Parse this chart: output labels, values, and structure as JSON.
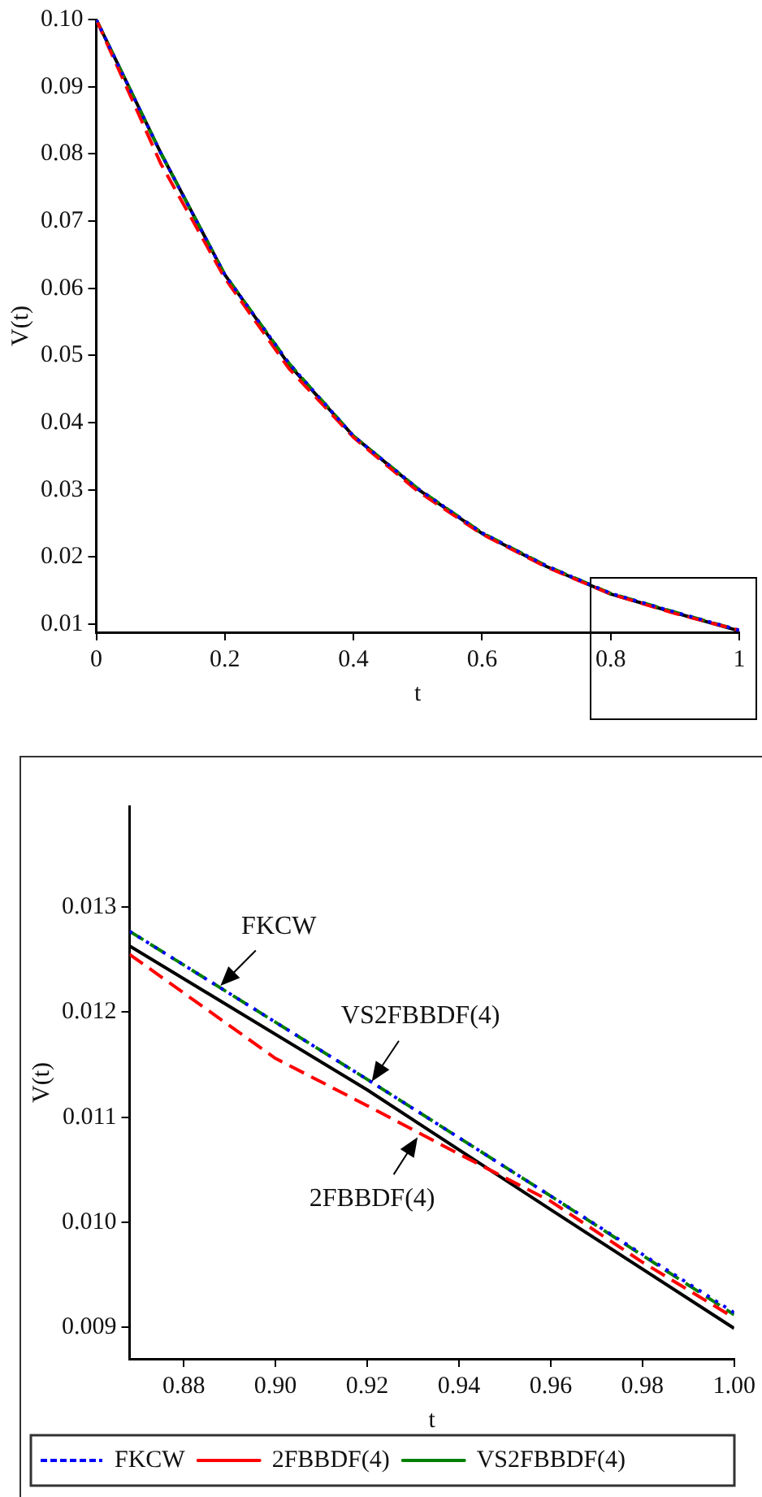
{
  "chart_data": [
    {
      "type": "line",
      "xlabel": "t",
      "ylabel": "V(t)",
      "xlim": [
        0,
        1
      ],
      "ylim": [
        0.0088,
        0.1
      ],
      "xticks": [
        0,
        0.2,
        0.4,
        0.6,
        0.8,
        1
      ],
      "yticks": [
        0.01,
        0.02,
        0.03,
        0.04,
        0.05,
        0.06,
        0.07,
        0.08,
        0.09,
        {
          "value": 0.1,
          "label": "0.10"
        }
      ],
      "grid": false,
      "legend": false,
      "marker": "none",
      "series": [
        {
          "color": "#0000ff",
          "line_style": "dotted",
          "x": [
            0,
            0.1,
            0.2,
            0.3,
            0.4,
            0.5,
            0.6,
            0.7,
            0.8,
            0.9,
            1
          ],
          "values": [
            0.1,
            0.0802,
            0.062,
            0.0488,
            0.038,
            0.0302,
            0.0236,
            0.0187,
            0.0146,
            0.0118,
            0.0091
          ]
        },
        {
          "color": "#ff0000",
          "line_style": "dashed",
          "x": [
            0,
            0.1,
            0.2,
            0.3,
            0.4,
            0.5,
            0.6,
            0.7,
            0.8,
            0.9,
            1
          ],
          "values": [
            0.1,
            0.0786,
            0.0615,
            0.048,
            0.0378,
            0.0298,
            0.0234,
            0.0185,
            0.0145,
            0.0116,
            0.0091
          ]
        },
        {
          "color": "#008000",
          "line_style": "dashed",
          "x": [
            0,
            0.1,
            0.2,
            0.3,
            0.4,
            0.5,
            0.6,
            0.7,
            0.8,
            0.9,
            1
          ],
          "values": [
            0.1,
            0.0802,
            0.062,
            0.0488,
            0.038,
            0.0302,
            0.0236,
            0.0187,
            0.0146,
            0.0118,
            0.0091
          ]
        },
        {
          "color": "#000000",
          "line_style": "solid",
          "x": [
            0,
            0.1,
            0.2,
            0.3,
            0.4,
            0.5,
            0.6,
            0.7,
            0.8,
            0.9,
            1
          ],
          "values": [
            0.1,
            0.0802,
            0.062,
            0.0486,
            0.038,
            0.0301,
            0.0235,
            0.0186,
            0.0145,
            0.0117,
            0.009
          ]
        }
      ]
    },
    {
      "type": "line",
      "xlabel": "t",
      "ylabel": "V(t)",
      "xlim": [
        0.8682,
        1.0
      ],
      "ylim": [
        0.0087,
        0.01396
      ],
      "xticks": [
        0.88,
        {
          "value": 0.9,
          "label": "0.90"
        },
        0.92,
        0.94,
        0.96,
        0.98,
        {
          "value": 1.0,
          "label": "1.00"
        }
      ],
      "yticks": [
        0.009,
        {
          "value": 0.01,
          "label": "0.010"
        },
        0.011,
        0.012,
        0.013
      ],
      "grid": false,
      "legend": "bottom",
      "marker": "none",
      "annotations": [
        {
          "text": "FKCW",
          "x": 0.888,
          "y": 0.01225
        },
        {
          "text": "VS2FBBDF(4)",
          "x": 0.921,
          "y": 0.01134
        },
        {
          "text": "2FBBDF(4)",
          "x": 0.931,
          "y": 0.01081
        }
      ],
      "series": [
        {
          "name": "FKCW",
          "color": "#0000ff",
          "line_style": "dotted",
          "x": [
            0.8682,
            0.92,
            0.96,
            1.0
          ],
          "values": [
            0.01277,
            0.01136,
            0.01025,
            0.00914
          ]
        },
        {
          "name": "2FBBDF(4)",
          "color": "#ff0000",
          "line_style": "dashed",
          "x": [
            0.8682,
            0.9,
            0.92,
            0.94,
            0.96,
            0.98,
            1.0
          ],
          "values": [
            0.01255,
            0.01156,
            0.01111,
            0.01065,
            0.0102,
            0.00962,
            0.00909
          ]
        },
        {
          "name": "VS2FBBDF(4)",
          "color": "#008000",
          "line_style": "dashed",
          "x": [
            0.8682,
            0.92,
            0.96,
            1.0
          ],
          "values": [
            0.01277,
            0.01136,
            0.01025,
            0.00912
          ]
        },
        {
          "color": "#000000",
          "line_style": "solid",
          "x": [
            0.8682,
            0.92,
            0.96,
            1.0
          ],
          "values": [
            0.01263,
            0.01126,
            0.01012,
            0.00899
          ]
        }
      ]
    }
  ]
}
